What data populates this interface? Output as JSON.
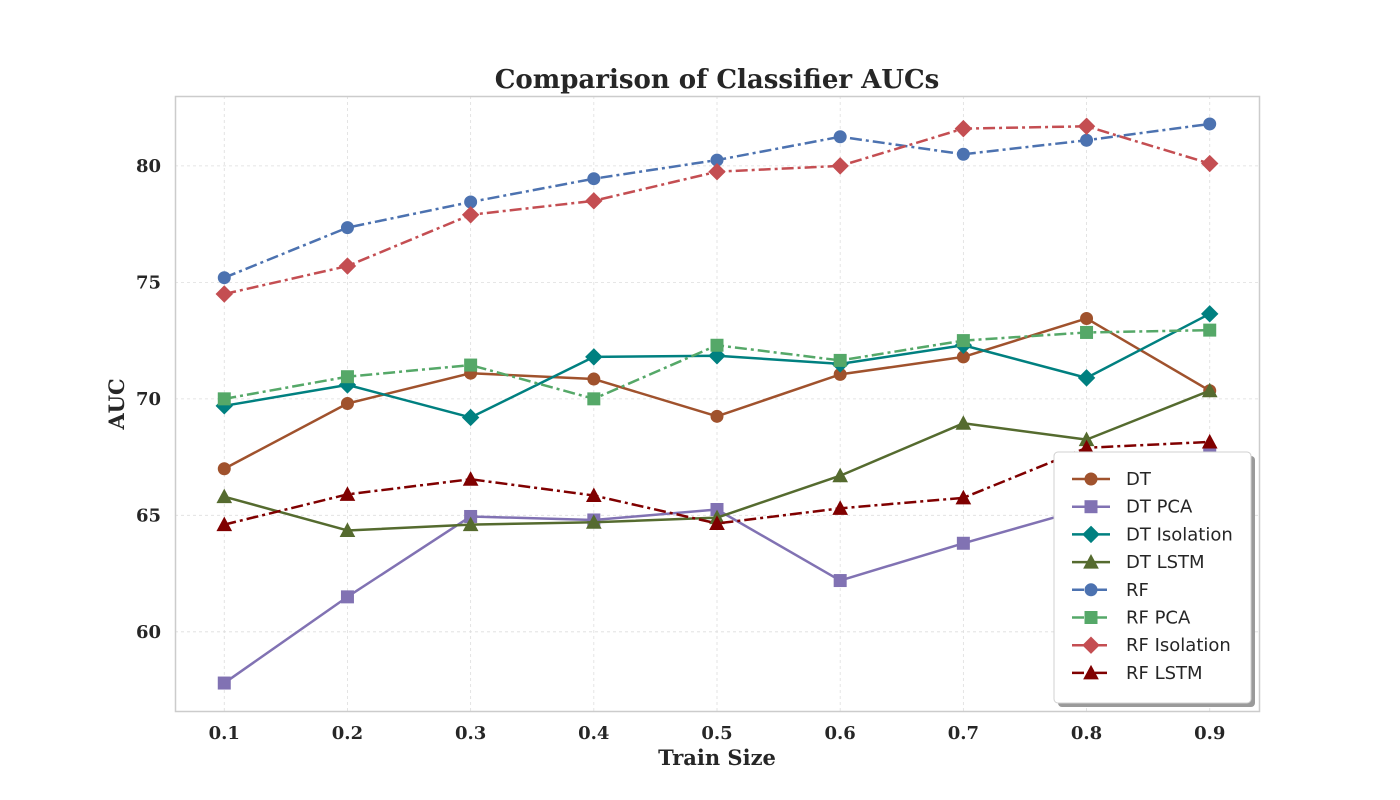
{
  "chart_data": {
    "type": "line",
    "title": "Comparison of Classifier AUCs",
    "xlabel": "Train Size",
    "ylabel": "AUC",
    "x": [
      0.1,
      0.2,
      0.3,
      0.4,
      0.5,
      0.6,
      0.7,
      0.8,
      0.9
    ],
    "x_ticks": [
      "0.1",
      "0.2",
      "0.3",
      "0.4",
      "0.5",
      "0.6",
      "0.7",
      "0.8",
      "0.9"
    ],
    "y_ticks": [
      60,
      65,
      70,
      75,
      80
    ],
    "xlim": [
      0.06,
      0.94
    ],
    "ylim": [
      56.6,
      83.0
    ],
    "grid": true,
    "legend_position": "lower-right",
    "series": [
      {
        "name": "DT",
        "color": "#A0522D",
        "marker": "circle",
        "dash": "solid",
        "values": [
          67.0,
          69.8,
          71.1,
          70.85,
          69.25,
          71.05,
          71.8,
          73.45,
          70.35
        ]
      },
      {
        "name": "DT PCA",
        "color": "#8172B3",
        "marker": "square",
        "dash": "solid",
        "values": [
          57.8,
          61.5,
          64.95,
          64.8,
          65.25,
          62.2,
          63.8,
          65.3,
          67.7
        ]
      },
      {
        "name": "DT Isolation",
        "color": "#008080",
        "marker": "diamond",
        "dash": "solid",
        "values": [
          69.7,
          70.6,
          69.2,
          71.8,
          71.85,
          71.5,
          72.3,
          70.9,
          73.65
        ]
      },
      {
        "name": "DT LSTM",
        "color": "#556B2F",
        "marker": "triangle",
        "dash": "solid",
        "values": [
          65.8,
          64.35,
          64.6,
          64.7,
          64.9,
          66.7,
          68.95,
          68.25,
          70.35
        ]
      },
      {
        "name": "RF",
        "color": "#4C72B0",
        "marker": "circle",
        "dash": "dashdot",
        "values": [
          75.2,
          77.35,
          78.45,
          79.45,
          80.25,
          81.25,
          80.5,
          81.1,
          81.8
        ]
      },
      {
        "name": "RF PCA",
        "color": "#55A868",
        "marker": "square",
        "dash": "dashdot",
        "values": [
          70.0,
          70.95,
          71.45,
          70.0,
          72.3,
          71.65,
          72.5,
          72.85,
          72.95
        ]
      },
      {
        "name": "RF Isolation",
        "color": "#C44E52",
        "marker": "diamond",
        "dash": "dashdot",
        "values": [
          74.5,
          75.7,
          77.9,
          78.5,
          79.75,
          80.0,
          81.6,
          81.7,
          80.1
        ]
      },
      {
        "name": "RF LSTM",
        "color": "#800000",
        "marker": "triangle",
        "dash": "dashdot",
        "values": [
          64.6,
          65.9,
          66.55,
          65.85,
          64.65,
          65.3,
          65.75,
          67.9,
          68.15
        ]
      }
    ]
  }
}
